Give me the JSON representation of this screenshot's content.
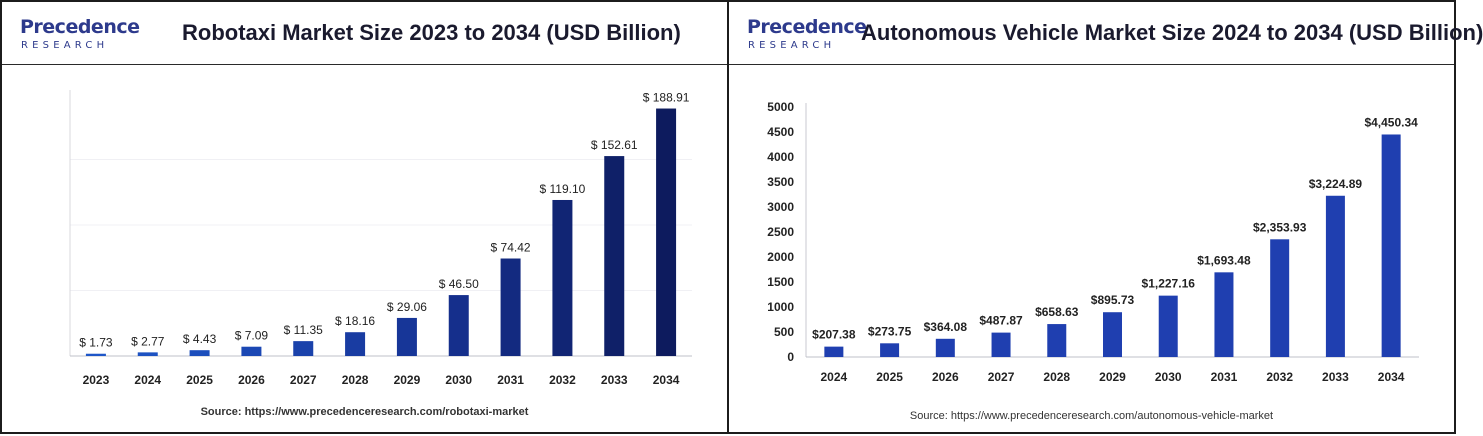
{
  "left": {
    "logo": {
      "top": "Precedence",
      "bottom": "RESEARCH"
    },
    "title": "Robotaxi Market Size 2023 to 2034 (USD Billion)",
    "source": "Source: https://www.precedenceresearch.com/robotaxi-market"
  },
  "right": {
    "logo": {
      "top": "Precedence",
      "bottom": "RESEARCH"
    },
    "title": "Autonomous Vehicle Market Size 2024 to 2034 (USD Billion)",
    "source": "Source: https://www.precedenceresearch.com/autonomous-vehicle-market"
  },
  "chart_data": [
    {
      "type": "bar",
      "title": "Robotaxi Market Size 2023 to 2034 (USD Billion)",
      "xlabel": "",
      "ylabel": "",
      "categories": [
        "2023",
        "2024",
        "2025",
        "2026",
        "2027",
        "2028",
        "2029",
        "2030",
        "2031",
        "2032",
        "2033",
        "2034"
      ],
      "values": [
        1.73,
        2.77,
        4.43,
        7.09,
        11.35,
        18.16,
        29.06,
        46.5,
        74.42,
        119.1,
        152.61,
        188.91
      ],
      "data_labels": [
        "$ 1.73",
        "$ 2.77",
        "$ 4.43",
        "$ 7.09",
        "$ 11.35",
        "$ 18.16",
        "$ 29.06",
        "$ 46.50",
        "$ 74.42",
        "$ 119.10",
        "$ 152.61",
        "$ 188.91"
      ],
      "ylim": [
        0,
        200
      ],
      "y_axis_visible": false,
      "grid": true,
      "colors": [
        "#1e56c8",
        "#1d52c2",
        "#1c4ebc",
        "#1b48b4",
        "#1a42ab",
        "#193ca2",
        "#173698",
        "#152f8c",
        "#132a80",
        "#112574",
        "#0f2068",
        "#0d1b5e"
      ]
    },
    {
      "type": "bar",
      "title": "Autonomous Vehicle Market Size 2024 to 2034 (USD Billion)",
      "xlabel": "",
      "ylabel": "",
      "categories": [
        "2024",
        "2025",
        "2026",
        "2027",
        "2028",
        "2029",
        "2030",
        "2031",
        "2032",
        "2033",
        "2034"
      ],
      "values": [
        207.38,
        273.75,
        364.08,
        487.87,
        658.63,
        895.73,
        1227.16,
        1693.48,
        2353.93,
        3224.89,
        4450.34
      ],
      "data_labels": [
        "$207.38",
        "$273.75",
        "$364.08",
        "$487.87",
        "$658.63",
        "$895.73",
        "$1,227.16",
        "$1,693.48",
        "$2,353.93",
        "$3,224.89",
        "$4,450.34"
      ],
      "ylim": [
        0,
        5000
      ],
      "yticks": [
        "0",
        "500",
        "1000",
        "1500",
        "2000",
        "2500",
        "3000",
        "3500",
        "4000",
        "4500",
        "5000"
      ],
      "y_axis_visible": true,
      "grid": false,
      "color": "#1f3fb0"
    }
  ]
}
